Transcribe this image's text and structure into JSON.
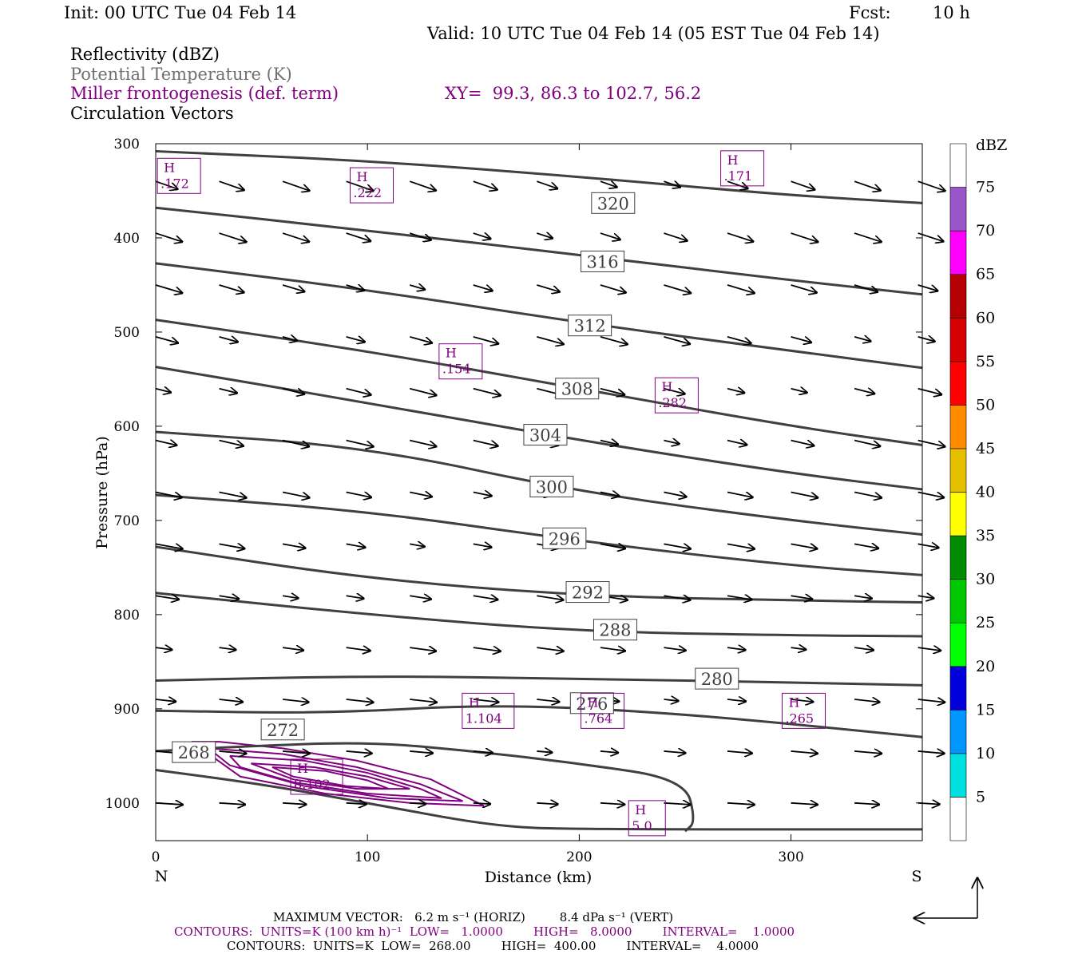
{
  "header": {
    "init": "Init: 00 UTC Tue 04 Feb 14",
    "fcst_label": "Fcst:",
    "fcst_value": "10 h",
    "valid": "Valid: 10 UTC Tue 04 Feb 14 (05 EST Tue 04 Feb 14)"
  },
  "legend": {
    "reflectivity": "Reflectivity (dBZ)",
    "theta": "Potential Temperature (K)",
    "miller": "Miller frontogenesis (def. term)",
    "xy": "XY=  99.3, 86.3 to 102.7, 56.2",
    "circulation": "Circulation Vectors",
    "colors": {
      "theta": "#707070",
      "miller": "#800080",
      "reflectivity": "#000000"
    }
  },
  "chart_data": {
    "type": "cross-section",
    "xlabel": "Distance (km)",
    "ylabel": "Pressure (hPa)",
    "xlim": [
      0,
      362
    ],
    "ylim": [
      1040,
      300
    ],
    "x_ticks": [
      "0",
      "100",
      "200",
      "300"
    ],
    "y_ticks": [
      "300",
      "400",
      "500",
      "600",
      "700",
      "800",
      "900",
      "1000"
    ],
    "left_end_label": "N",
    "right_end_label": "S",
    "theta_contours": [
      {
        "label": "320",
        "x": 216,
        "p": 363,
        "pts": [
          [
            0,
            308
          ],
          [
            100,
            318
          ],
          [
            200,
            335
          ],
          [
            300,
            355
          ],
          [
            362,
            363
          ]
        ]
      },
      {
        "label": "316",
        "x": 211,
        "p": 425,
        "pts": [
          [
            0,
            368
          ],
          [
            100,
            392
          ],
          [
            200,
            418
          ],
          [
            300,
            445
          ],
          [
            362,
            460
          ]
        ]
      },
      {
        "label": "312",
        "x": 205,
        "p": 493,
        "pts": [
          [
            0,
            427
          ],
          [
            100,
            455
          ],
          [
            200,
            490
          ],
          [
            300,
            520
          ],
          [
            362,
            538
          ]
        ]
      },
      {
        "label": "308",
        "x": 199,
        "p": 560,
        "pts": [
          [
            0,
            487
          ],
          [
            100,
            520
          ],
          [
            200,
            560
          ],
          [
            300,
            600
          ],
          [
            362,
            620
          ]
        ]
      },
      {
        "label": "304",
        "x": 184,
        "p": 609,
        "pts": [
          [
            0,
            537
          ],
          [
            100,
            575
          ],
          [
            200,
            615
          ],
          [
            300,
            650
          ],
          [
            362,
            667
          ]
        ]
      },
      {
        "label": "300",
        "x": 187,
        "p": 664,
        "pts": [
          [
            0,
            606
          ],
          [
            100,
            622
          ],
          [
            200,
            670
          ],
          [
            300,
            700
          ],
          [
            362,
            715
          ]
        ]
      },
      {
        "label": "296",
        "x": 193,
        "p": 719,
        "pts": [
          [
            0,
            673
          ],
          [
            100,
            690
          ],
          [
            200,
            722
          ],
          [
            300,
            748
          ],
          [
            362,
            758
          ]
        ]
      },
      {
        "label": "292",
        "x": 204,
        "p": 776,
        "pts": [
          [
            0,
            728
          ],
          [
            100,
            762
          ],
          [
            200,
            780
          ],
          [
            300,
            785
          ],
          [
            362,
            787
          ]
        ]
      },
      {
        "label": "288",
        "x": 217,
        "p": 816,
        "pts": [
          [
            0,
            777
          ],
          [
            100,
            800
          ],
          [
            200,
            818
          ],
          [
            300,
            822
          ],
          [
            362,
            823
          ]
        ]
      },
      {
        "label": "280",
        "x": 265,
        "p": 868,
        "pts": [
          [
            0,
            870
          ],
          [
            100,
            865
          ],
          [
            200,
            868
          ],
          [
            300,
            872
          ],
          [
            362,
            875
          ]
        ]
      },
      {
        "label": "276",
        "x": 206,
        "p": 894,
        "pts": [
          [
            0,
            902
          ],
          [
            80,
            905
          ],
          [
            160,
            895
          ],
          [
            250,
            905
          ],
          [
            362,
            930
          ]
        ]
      },
      {
        "label": "272",
        "x": 60,
        "p": 922,
        "pts": [
          [
            0,
            945
          ],
          [
            40,
            940
          ],
          [
            100,
            935
          ],
          [
            150,
            945
          ],
          [
            200,
            958
          ],
          [
            250,
            975
          ],
          [
            255,
            1020
          ],
          [
            250,
            1030
          ]
        ]
      },
      {
        "label": "268",
        "x": 18,
        "p": 946,
        "pts": [
          [
            0,
            965
          ],
          [
            50,
            980
          ],
          [
            100,
            1000
          ],
          [
            160,
            1025
          ],
          [
            200,
            1028
          ],
          [
            362,
            1028
          ]
        ]
      }
    ],
    "frontogenesis_maxima": [
      {
        "label": "H",
        "value": ".172",
        "x": 11,
        "p": 335
      },
      {
        "label": "H",
        "value": ".222",
        "x": 102,
        "p": 345
      },
      {
        "label": "H",
        "value": ".171",
        "x": 277,
        "p": 327
      },
      {
        "label": "H",
        "value": ".154",
        "x": 144,
        "p": 532
      },
      {
        "label": "H",
        "value": ".282",
        "x": 246,
        "p": 568
      },
      {
        "label": "H",
        "value": "1.104",
        "x": 157,
        "p": 903
      },
      {
        "label": "H",
        "value": ".764",
        "x": 211,
        "p": 903
      },
      {
        "label": "H",
        "value": ".265",
        "x": 306,
        "p": 903
      },
      {
        "label": "H",
        "value": "8.102",
        "x": 76,
        "p": 973
      },
      {
        "label": "H",
        "value": "5.0",
        "x": 232,
        "p": 1017
      }
    ],
    "colorbar": {
      "unit": "dBZ",
      "labels": [
        "5",
        "10",
        "15",
        "20",
        "25",
        "30",
        "35",
        "40",
        "45",
        "50",
        "55",
        "60",
        "65",
        "70",
        "75"
      ],
      "colors": [
        "#ffffff",
        "#00e0e0",
        "#0096ff",
        "#0000dd",
        "#00ff00",
        "#00c800",
        "#008c00",
        "#ffff00",
        "#e6bf00",
        "#ff8c00",
        "#ff0000",
        "#d70000",
        "#b40000",
        "#ff00ff",
        "#9955c9",
        "#ffffff"
      ]
    }
  },
  "footer": {
    "line1": "MAXIMUM VECTOR:   6.2 m s⁻¹ (HORIZ)         8.4 dPa s⁻¹ (VERT)",
    "line2": "CONTOURS:  UNITS=K (100 km h)⁻¹  LOW=   1.0000        HIGH=   8.0000        INTERVAL=    1.0000",
    "line3": "CONTOURS:  UNITS=K  LOW=  268.00        HIGH=  400.00        INTERVAL=    4.0000"
  }
}
